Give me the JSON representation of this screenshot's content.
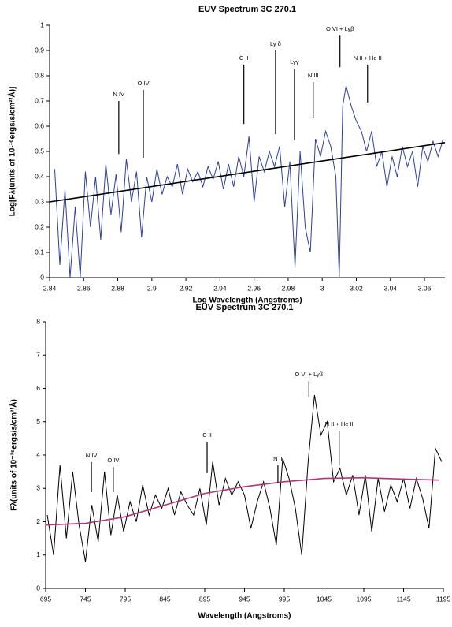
{
  "chart_data": [
    {
      "type": "line",
      "title": "EUV Spectrum 3C 270.1",
      "x_label": "Log Wavelength (Angstroms)",
      "y_label": "Log[Fλ(units of 10-¹⁶ergs/s/cm²/Å)]",
      "xlim": [
        2.84,
        3.072
      ],
      "ylim": [
        0,
        1
      ],
      "xticks": [
        2.84,
        2.86,
        2.88,
        2.9,
        2.92,
        2.94,
        2.96,
        2.98,
        3,
        3.02,
        3.04,
        3.06
      ],
      "yticks": [
        0,
        0.1,
        0.2,
        0.3,
        0.4,
        0.5,
        0.6,
        0.7,
        0.8,
        0.9,
        1
      ],
      "series": [
        {
          "color": "#2f3f9c",
          "x": [
            2.843,
            2.846,
            2.849,
            2.852,
            2.855,
            2.858,
            2.861,
            2.864,
            2.867,
            2.87,
            2.873,
            2.876,
            2.879,
            2.882,
            2.885,
            2.888,
            2.891,
            2.894,
            2.897,
            2.9,
            2.903,
            2.906,
            2.909,
            2.912,
            2.915,
            2.918,
            2.921,
            2.924,
            2.927,
            2.93,
            2.933,
            2.936,
            2.939,
            2.942,
            2.945,
            2.948,
            2.951,
            2.954,
            2.957,
            2.96,
            2.963,
            2.966,
            2.969,
            2.972,
            2.975,
            2.978,
            2.981,
            2.984,
            2.987,
            2.99,
            2.993,
            2.996,
            2.999,
            3.002,
            3.005,
            3.008,
            3.01,
            3.012,
            3.014,
            3.017,
            3.02,
            3.023,
            3.026,
            3.029,
            3.032,
            3.035,
            3.038,
            3.041,
            3.044,
            3.047,
            3.05,
            3.053,
            3.056,
            3.059,
            3.062,
            3.065,
            3.068,
            3.071
          ],
          "values": [
            0.43,
            0.05,
            0.35,
            0.0,
            0.28,
            0.0,
            0.42,
            0.2,
            0.4,
            0.15,
            0.45,
            0.25,
            0.41,
            0.18,
            0.47,
            0.3,
            0.42,
            0.16,
            0.4,
            0.3,
            0.43,
            0.33,
            0.4,
            0.36,
            0.45,
            0.33,
            0.43,
            0.38,
            0.42,
            0.36,
            0.44,
            0.39,
            0.46,
            0.35,
            0.45,
            0.36,
            0.48,
            0.4,
            0.56,
            0.3,
            0.48,
            0.42,
            0.5,
            0.44,
            0.52,
            0.28,
            0.46,
            0.04,
            0.5,
            0.2,
            0.1,
            0.55,
            0.48,
            0.58,
            0.52,
            0.4,
            0.0,
            0.68,
            0.76,
            0.68,
            0.62,
            0.58,
            0.5,
            0.58,
            0.44,
            0.5,
            0.36,
            0.48,
            0.4,
            0.52,
            0.44,
            0.5,
            0.36,
            0.52,
            0.46,
            0.54,
            0.48,
            0.55
          ]
        },
        {
          "color": "#000000",
          "x": [
            2.84,
            3.072
          ],
          "values": [
            0.3,
            0.535
          ]
        }
      ],
      "annotations": [
        {
          "text": "N IV",
          "x": 2.8806,
          "y": [
            0.49,
            0.7
          ]
        },
        {
          "text": "O IV",
          "x": 2.895,
          "y": [
            0.475,
            0.744
          ]
        },
        {
          "text": "C II",
          "x": 2.954,
          "y": [
            0.609,
            0.844
          ]
        },
        {
          "text": "Ly δ",
          "x": 2.9726,
          "y": [
            0.569,
            0.9
          ]
        },
        {
          "text": "Lyγ",
          "x": 2.9837,
          "y": [
            0.544,
            0.828
          ]
        },
        {
          "text": "N III",
          "x": 2.9947,
          "y": [
            0.631,
            0.775
          ]
        },
        {
          "text": "O VI + Lyβ",
          "x": 3.0104,
          "y": [
            0.834,
            0.959
          ]
        },
        {
          "text": "N II + He II",
          "x": 3.0266,
          "y": [
            0.694,
            0.844
          ]
        }
      ]
    },
    {
      "type": "line",
      "title": "EUV Spectrum 3C 270.1",
      "x_label": "Wavelength (Angstroms)",
      "y_label": "Fλ(units of 10⁻¹⁶ergs/s/cm²/Å)",
      "xlim": [
        695,
        1195
      ],
      "ylim": [
        0,
        8
      ],
      "xticks": [
        695,
        745,
        795,
        845,
        895,
        945,
        995,
        1045,
        1095,
        1145,
        1195
      ],
      "yticks": [
        0,
        1,
        2,
        3,
        4,
        5,
        6,
        7,
        8
      ],
      "series": [
        {
          "color": "#000000",
          "x": [
            697,
            705,
            713,
            721,
            729,
            737,
            745,
            753,
            761,
            769,
            777,
            785,
            793,
            801,
            809,
            817,
            825,
            833,
            841,
            849,
            857,
            865,
            873,
            881,
            889,
            897,
            905,
            913,
            921,
            929,
            937,
            945,
            953,
            961,
            969,
            977,
            985,
            993,
            1001,
            1009,
            1017,
            1025,
            1033,
            1041,
            1049,
            1057,
            1065,
            1073,
            1081,
            1089,
            1097,
            1105,
            1113,
            1121,
            1129,
            1137,
            1145,
            1153,
            1161,
            1169,
            1177,
            1185,
            1193
          ],
          "values": [
            2.2,
            1.0,
            3.7,
            1.5,
            3.5,
            1.9,
            0.8,
            2.5,
            1.4,
            3.5,
            1.6,
            2.8,
            1.7,
            2.6,
            2.0,
            3.1,
            2.2,
            2.8,
            2.4,
            3.0,
            2.2,
            2.9,
            2.5,
            2.2,
            3.0,
            1.9,
            3.8,
            2.5,
            3.3,
            2.8,
            3.2,
            2.8,
            1.8,
            2.6,
            3.2,
            2.4,
            1.3,
            3.9,
            3.3,
            2.4,
            1.0,
            3.8,
            5.8,
            4.6,
            5.0,
            3.2,
            3.6,
            2.8,
            3.4,
            2.2,
            3.4,
            1.7,
            3.3,
            2.3,
            3.1,
            2.6,
            3.3,
            2.4,
            3.3,
            2.7,
            1.8,
            4.2,
            3.8
          ]
        },
        {
          "color": "#b0367a",
          "x": [
            695,
            745,
            795,
            845,
            895,
            945,
            995,
            1045,
            1095,
            1145,
            1190
          ],
          "values": [
            1.9,
            1.95,
            2.15,
            2.5,
            2.85,
            3.05,
            3.2,
            3.3,
            3.32,
            3.28,
            3.25
          ]
        }
      ],
      "annotations": [
        {
          "text": "N IV",
          "x": 752.5,
          "y": [
            2.89,
            3.79
          ]
        },
        {
          "text": "O IV",
          "x": 780,
          "y": [
            2.89,
            3.64
          ]
        },
        {
          "text": "C II",
          "x": 898,
          "y": [
            3.46,
            4.4
          ]
        },
        {
          "text": "N II",
          "x": 987,
          "y": [
            3.17,
            3.69
          ]
        },
        {
          "text": "O VI + Lyβ",
          "x": 1026,
          "y": [
            5.75,
            6.22
          ]
        },
        {
          "text": "N II + He II",
          "x": 1064,
          "y": [
            3.69,
            4.73
          ]
        }
      ]
    }
  ]
}
